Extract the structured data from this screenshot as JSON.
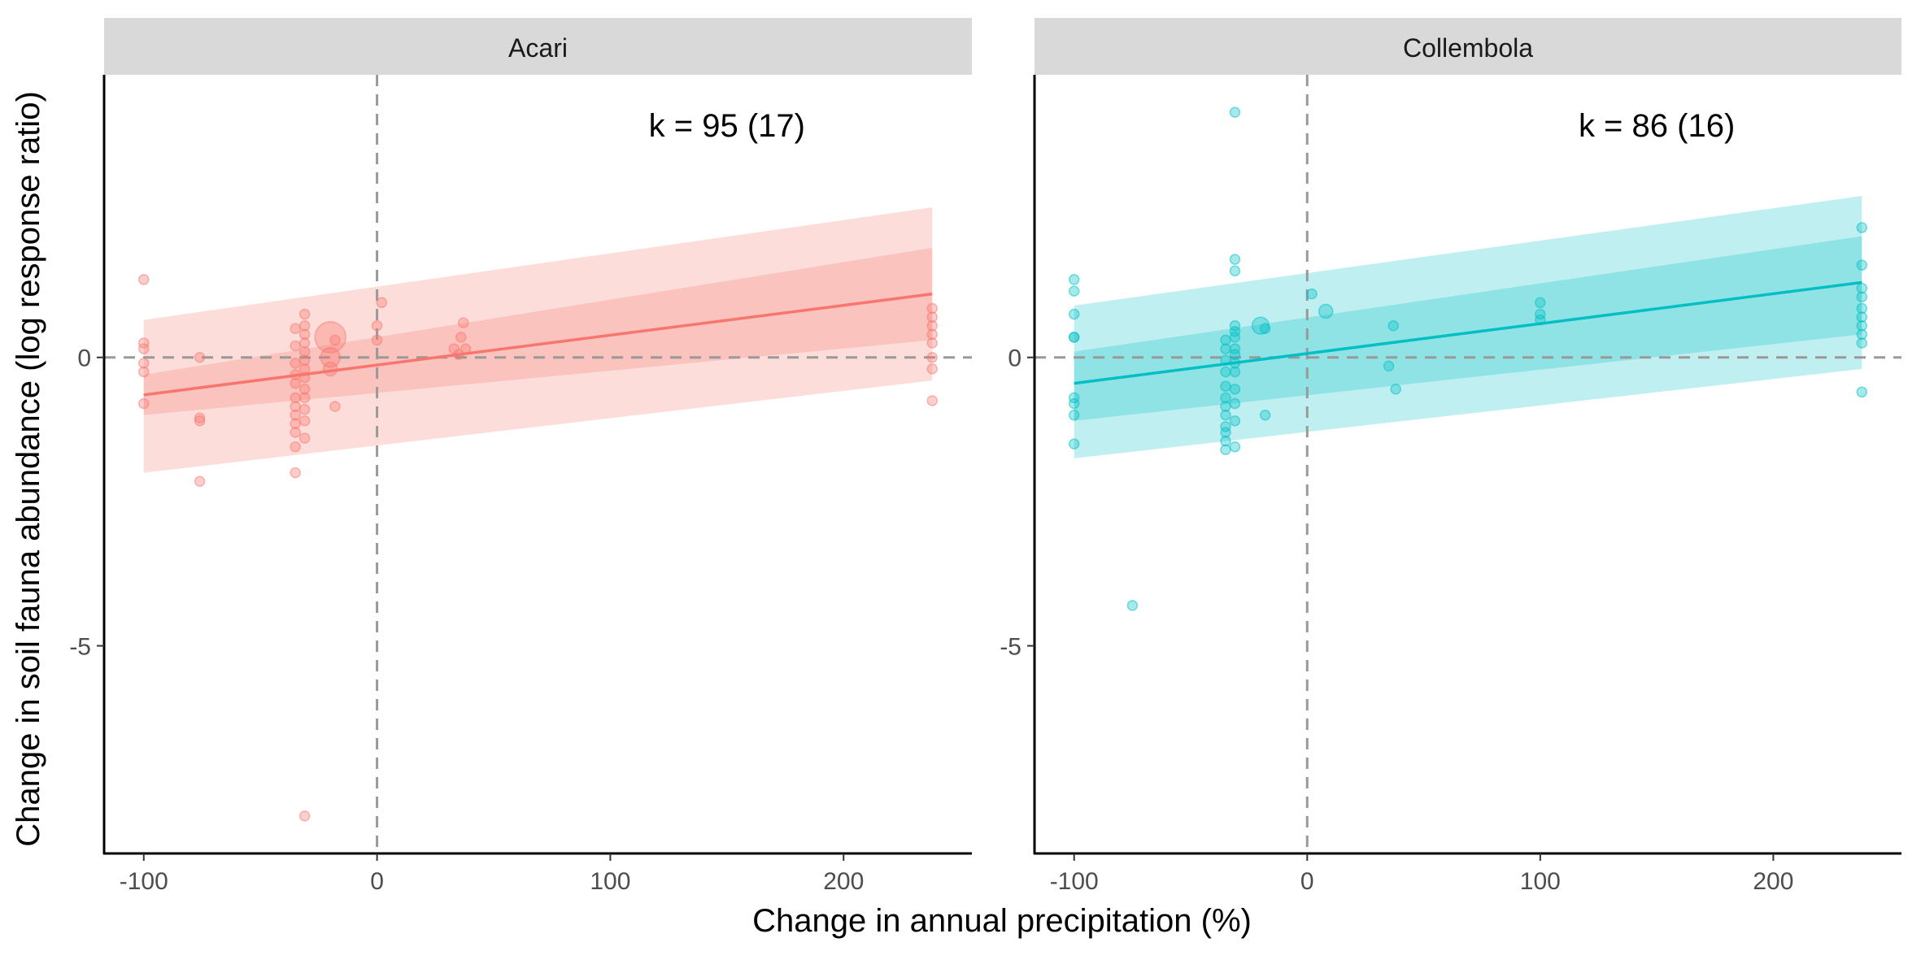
{
  "chart_data": {
    "type": "scatter",
    "xlabel": "Change in annual precipitation (%)",
    "ylabel": "Change in soil fauna abundance (log response ratio)",
    "xlim": [
      -117,
      255
    ],
    "ylim": [
      -8.6,
      4.9
    ],
    "xticks": [
      -100,
      0,
      100,
      200
    ],
    "yticks": [
      -5,
      0
    ],
    "grid": false,
    "reference_lines": {
      "x": 0,
      "y": 0
    },
    "panels": [
      {
        "title": "Acari",
        "annotation": "k = 95 (17)",
        "color": "#F8766D",
        "fit": {
          "x": [
            -100,
            238
          ],
          "y": [
            -0.65,
            1.1
          ]
        },
        "ci_inner": {
          "x": [
            -100,
            238
          ],
          "upper": [
            -0.3,
            1.9
          ],
          "lower": [
            -1.0,
            0.3
          ]
        },
        "ci_outer": {
          "x": [
            -100,
            238
          ],
          "upper": [
            0.65,
            2.6
          ],
          "lower": [
            -2.0,
            -0.4
          ]
        },
        "points": [
          {
            "x": -100,
            "y": 1.35,
            "w": 1
          },
          {
            "x": -100,
            "y": 0.25,
            "w": 1
          },
          {
            "x": -100,
            "y": 0.15,
            "w": 1
          },
          {
            "x": -100,
            "y": -0.1,
            "w": 1
          },
          {
            "x": -100,
            "y": -0.25,
            "w": 1
          },
          {
            "x": -100,
            "y": -0.8,
            "w": 1
          },
          {
            "x": -76,
            "y": 0.0,
            "w": 1
          },
          {
            "x": -76,
            "y": -1.05,
            "w": 1
          },
          {
            "x": -76,
            "y": -1.1,
            "w": 1
          },
          {
            "x": -76,
            "y": -2.15,
            "w": 1
          },
          {
            "x": -35,
            "y": 0.5,
            "w": 1
          },
          {
            "x": -35,
            "y": 0.2,
            "w": 1
          },
          {
            "x": -35,
            "y": -0.1,
            "w": 1
          },
          {
            "x": -35,
            "y": -0.3,
            "w": 1
          },
          {
            "x": -35,
            "y": -0.45,
            "w": 1
          },
          {
            "x": -35,
            "y": -0.7,
            "w": 1
          },
          {
            "x": -35,
            "y": -0.85,
            "w": 1
          },
          {
            "x": -35,
            "y": -1.0,
            "w": 1
          },
          {
            "x": -35,
            "y": -1.15,
            "w": 1
          },
          {
            "x": -35,
            "y": -1.3,
            "w": 1
          },
          {
            "x": -35,
            "y": -1.55,
            "w": 1
          },
          {
            "x": -35,
            "y": -2.0,
            "w": 1
          },
          {
            "x": -31,
            "y": 0.75,
            "w": 1
          },
          {
            "x": -31,
            "y": 0.55,
            "w": 1
          },
          {
            "x": -31,
            "y": 0.4,
            "w": 1
          },
          {
            "x": -31,
            "y": 0.25,
            "w": 1
          },
          {
            "x": -31,
            "y": 0.1,
            "w": 1
          },
          {
            "x": -31,
            "y": -0.05,
            "w": 1
          },
          {
            "x": -31,
            "y": -0.2,
            "w": 1
          },
          {
            "x": -31,
            "y": -0.35,
            "w": 1
          },
          {
            "x": -31,
            "y": -0.55,
            "w": 1
          },
          {
            "x": -31,
            "y": -0.7,
            "w": 1
          },
          {
            "x": -31,
            "y": -0.9,
            "w": 1
          },
          {
            "x": -31,
            "y": -1.1,
            "w": 1
          },
          {
            "x": -31,
            "y": -1.4,
            "w": 1
          },
          {
            "x": -31,
            "y": -7.95,
            "w": 1
          },
          {
            "x": -20,
            "y": 0.35,
            "w": 10
          },
          {
            "x": -20,
            "y": 0.0,
            "w": 4
          },
          {
            "x": -20,
            "y": -0.2,
            "w": 2
          },
          {
            "x": -18,
            "y": 0.3,
            "w": 1
          },
          {
            "x": -18,
            "y": -0.85,
            "w": 1
          },
          {
            "x": 0,
            "y": 0.55,
            "w": 1
          },
          {
            "x": 0,
            "y": 0.3,
            "w": 1
          },
          {
            "x": 2,
            "y": 0.95,
            "w": 1
          },
          {
            "x": 33,
            "y": 0.15,
            "w": 1
          },
          {
            "x": 35,
            "y": 0.05,
            "w": 1
          },
          {
            "x": 36,
            "y": 0.35,
            "w": 1
          },
          {
            "x": 37,
            "y": 0.6,
            "w": 1
          },
          {
            "x": 38,
            "y": 0.15,
            "w": 1
          },
          {
            "x": 238,
            "y": 0.85,
            "w": 1
          },
          {
            "x": 238,
            "y": 0.7,
            "w": 1
          },
          {
            "x": 238,
            "y": 0.55,
            "w": 1
          },
          {
            "x": 238,
            "y": 0.4,
            "w": 1
          },
          {
            "x": 238,
            "y": 0.25,
            "w": 1
          },
          {
            "x": 238,
            "y": 0.0,
            "w": 1
          },
          {
            "x": 238,
            "y": -0.2,
            "w": 1
          },
          {
            "x": 238,
            "y": -0.75,
            "w": 1
          }
        ]
      },
      {
        "title": "Collembola",
        "annotation": "k = 86 (16)",
        "color": "#00BFC4",
        "fit": {
          "x": [
            -100,
            238
          ],
          "y": [
            -0.45,
            1.3
          ]
        },
        "ci_inner": {
          "x": [
            -100,
            238
          ],
          "upper": [
            0.1,
            2.1
          ],
          "lower": [
            -1.1,
            0.4
          ]
        },
        "ci_outer": {
          "x": [
            -100,
            238
          ],
          "upper": [
            0.9,
            2.8
          ],
          "lower": [
            -1.75,
            -0.2
          ]
        },
        "points": [
          {
            "x": -100,
            "y": 1.35,
            "w": 1
          },
          {
            "x": -100,
            "y": 1.15,
            "w": 1
          },
          {
            "x": -100,
            "y": 0.75,
            "w": 1
          },
          {
            "x": -100,
            "y": 0.35,
            "w": 1
          },
          {
            "x": -100,
            "y": 0.35,
            "w": 1
          },
          {
            "x": -100,
            "y": -0.7,
            "w": 1
          },
          {
            "x": -100,
            "y": -0.8,
            "w": 1
          },
          {
            "x": -100,
            "y": -1.0,
            "w": 1
          },
          {
            "x": -100,
            "y": -1.5,
            "w": 1
          },
          {
            "x": -75,
            "y": -4.3,
            "w": 1
          },
          {
            "x": -35,
            "y": 0.3,
            "w": 1
          },
          {
            "x": -35,
            "y": 0.15,
            "w": 1
          },
          {
            "x": -35,
            "y": -0.05,
            "w": 1
          },
          {
            "x": -35,
            "y": -0.25,
            "w": 1
          },
          {
            "x": -35,
            "y": -0.5,
            "w": 1
          },
          {
            "x": -35,
            "y": -0.7,
            "w": 1
          },
          {
            "x": -35,
            "y": -0.85,
            "w": 1
          },
          {
            "x": -35,
            "y": -1.0,
            "w": 1
          },
          {
            "x": -35,
            "y": -1.2,
            "w": 1
          },
          {
            "x": -35,
            "y": -1.3,
            "w": 1
          },
          {
            "x": -35,
            "y": -1.45,
            "w": 1
          },
          {
            "x": -35,
            "y": -1.6,
            "w": 1
          },
          {
            "x": -31,
            "y": 4.25,
            "w": 1
          },
          {
            "x": -31,
            "y": 1.7,
            "w": 1
          },
          {
            "x": -31,
            "y": 1.5,
            "w": 1
          },
          {
            "x": -31,
            "y": 0.55,
            "w": 1
          },
          {
            "x": -31,
            "y": 0.45,
            "w": 1
          },
          {
            "x": -31,
            "y": 0.35,
            "w": 1
          },
          {
            "x": -31,
            "y": 0.15,
            "w": 1
          },
          {
            "x": -31,
            "y": 0.05,
            "w": 1
          },
          {
            "x": -31,
            "y": -0.1,
            "w": 1
          },
          {
            "x": -31,
            "y": -0.25,
            "w": 1
          },
          {
            "x": -31,
            "y": -0.55,
            "w": 1
          },
          {
            "x": -31,
            "y": -0.8,
            "w": 1
          },
          {
            "x": -31,
            "y": -1.1,
            "w": 1
          },
          {
            "x": -31,
            "y": -1.55,
            "w": 1
          },
          {
            "x": -20,
            "y": 0.55,
            "w": 3
          },
          {
            "x": -18,
            "y": 0.5,
            "w": 1
          },
          {
            "x": -18,
            "y": -1.0,
            "w": 1
          },
          {
            "x": 2,
            "y": 1.1,
            "w": 1
          },
          {
            "x": 8,
            "y": 0.8,
            "w": 2
          },
          {
            "x": 35,
            "y": -0.15,
            "w": 1
          },
          {
            "x": 37,
            "y": 0.55,
            "w": 1
          },
          {
            "x": 38,
            "y": -0.55,
            "w": 1
          },
          {
            "x": 100,
            "y": 0.95,
            "w": 1
          },
          {
            "x": 100,
            "y": 0.75,
            "w": 1
          },
          {
            "x": 100,
            "y": 0.65,
            "w": 1
          },
          {
            "x": 238,
            "y": 2.25,
            "w": 1
          },
          {
            "x": 238,
            "y": 1.6,
            "w": 1
          },
          {
            "x": 238,
            "y": 1.2,
            "w": 1
          },
          {
            "x": 238,
            "y": 1.05,
            "w": 1
          },
          {
            "x": 238,
            "y": 0.85,
            "w": 1
          },
          {
            "x": 238,
            "y": 0.7,
            "w": 1
          },
          {
            "x": 238,
            "y": 0.55,
            "w": 1
          },
          {
            "x": 238,
            "y": 0.4,
            "w": 1
          },
          {
            "x": 238,
            "y": 0.25,
            "w": 1
          },
          {
            "x": 238,
            "y": -0.6,
            "w": 1
          }
        ]
      }
    ]
  }
}
